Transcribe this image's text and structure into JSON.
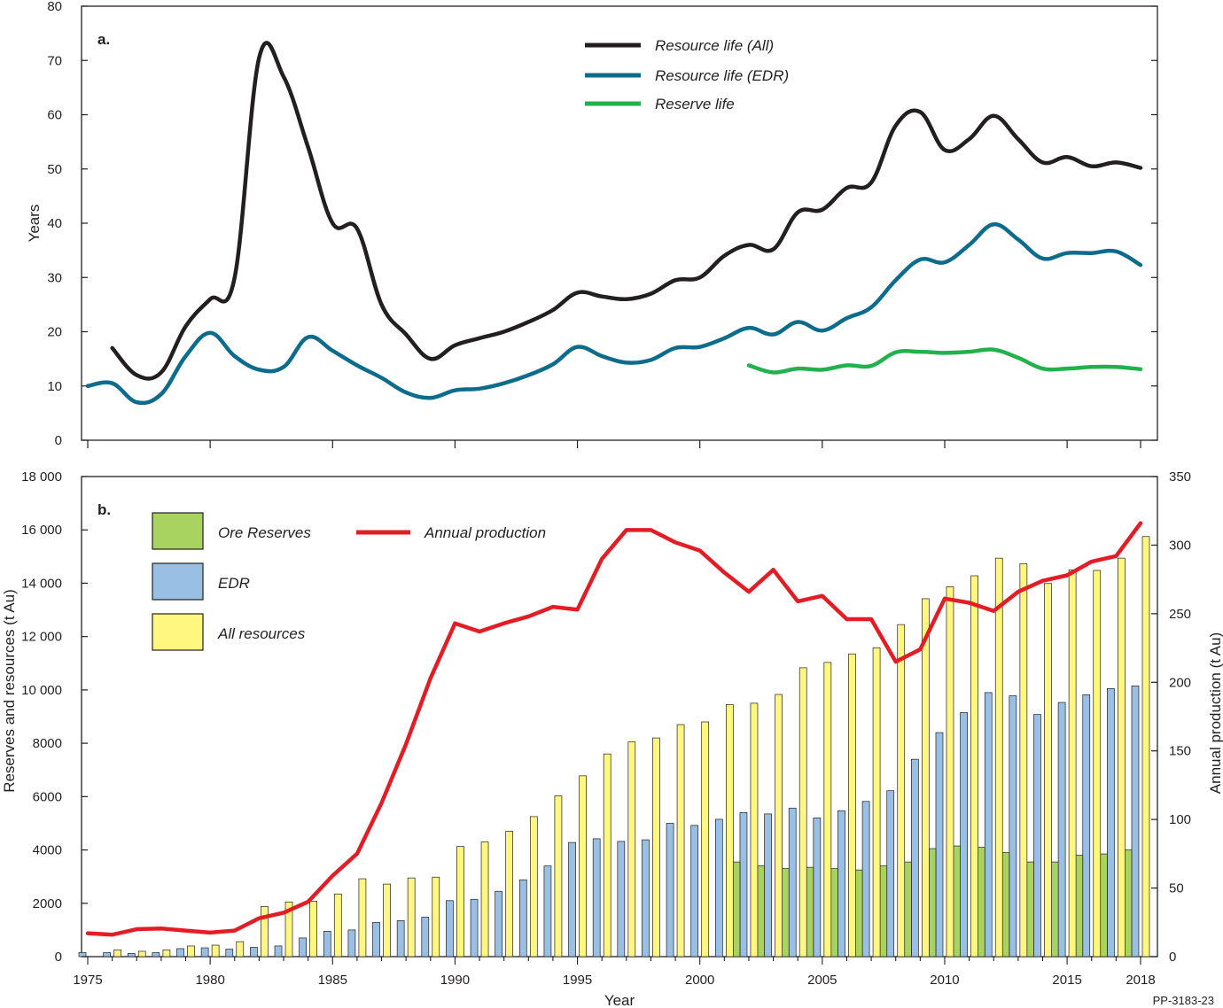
{
  "figure_ref": "PP-3183-23",
  "colors": {
    "axis": "#231f20",
    "resource_all": "#231f20",
    "resource_edr": "#0d6b8c",
    "reserve": "#22b14c",
    "ore_reserves": "#a8d361",
    "edr_bar": "#99bfe4",
    "all_resources_bar": "#fff780",
    "annual_production": "#e31d25"
  },
  "chart_data": [
    {
      "type": "line",
      "panel_label": "a.",
      "ylabel": "Years",
      "xlabel": "",
      "xlim": [
        1975,
        2018
      ],
      "ylim": [
        0,
        80
      ],
      "yticks": [
        0,
        10,
        20,
        30,
        40,
        50,
        60,
        70,
        80
      ],
      "ytick_labels": [
        "0",
        "10",
        "20",
        "30",
        "40",
        "50",
        "60",
        "70",
        "80"
      ],
      "legend_position": "top-center",
      "series": [
        {
          "name": "Resource life (All)",
          "color_key": "resource_all",
          "x": [
            1976,
            1977,
            1978,
            1979,
            1980,
            1981,
            1982,
            1983,
            1984,
            1985,
            1986,
            1987,
            1988,
            1989,
            1990,
            1991,
            1992,
            1993,
            1994,
            1995,
            1996,
            1997,
            1998,
            1999,
            2000,
            2001,
            2002,
            2003,
            2004,
            2005,
            2006,
            2007,
            2008,
            2009,
            2010,
            2011,
            2012,
            2013,
            2014,
            2015,
            2016,
            2017,
            2018
          ],
          "values": [
            17,
            12,
            12.5,
            21,
            26,
            30,
            70.5,
            67,
            54,
            40,
            39,
            25,
            19.5,
            15,
            17.5,
            18.8,
            20,
            21.8,
            24,
            27.2,
            26.5,
            26,
            27,
            29.5,
            30,
            34,
            36,
            35.2,
            42,
            42.5,
            46.5,
            47.5,
            58,
            60.5,
            53.5,
            55.5,
            59.8,
            55.5,
            51.2,
            52.2,
            50.5,
            51.2,
            50.2
          ]
        },
        {
          "name": "Resource life (EDR)",
          "color_key": "resource_edr",
          "x": [
            1975,
            1976,
            1977,
            1978,
            1979,
            1980,
            1981,
            1982,
            1983,
            1984,
            1985,
            1986,
            1987,
            1988,
            1989,
            1990,
            1991,
            1992,
            1993,
            1994,
            1995,
            1996,
            1997,
            1998,
            1999,
            2000,
            2001,
            2002,
            2003,
            2004,
            2005,
            2006,
            2007,
            2008,
            2009,
            2010,
            2011,
            2012,
            2013,
            2014,
            2015,
            2016,
            2017,
            2018
          ],
          "values": [
            10,
            10.5,
            7,
            8.5,
            15.5,
            19.8,
            15.5,
            13,
            13.5,
            19,
            16.5,
            13.8,
            11.5,
            8.8,
            7.8,
            9.2,
            9.5,
            10.5,
            12,
            14,
            17.2,
            15.5,
            14.3,
            14.8,
            17,
            17.2,
            18.8,
            20.7,
            19.5,
            21.8,
            20.2,
            22.5,
            24.5,
            29.5,
            33.3,
            32.8,
            36,
            39.8,
            37,
            33.5,
            34.5,
            34.5,
            34.8,
            32.3
          ]
        },
        {
          "name": "Reserve life",
          "color_key": "reserve",
          "x": [
            2002,
            2003,
            2004,
            2005,
            2006,
            2007,
            2008,
            2009,
            2010,
            2011,
            2012,
            2013,
            2014,
            2015,
            2016,
            2017,
            2018
          ],
          "values": [
            13.8,
            12.5,
            13.2,
            13,
            13.8,
            13.7,
            16.2,
            16.3,
            16.1,
            16.3,
            16.7,
            15.2,
            13.2,
            13.2,
            13.5,
            13.5,
            13.1
          ]
        }
      ]
    },
    {
      "type": "bar",
      "panel_label": "b.",
      "ylabel": "Reserves and resources (t Au)",
      "y2label": "Annual production (t Au)",
      "xlabel": "Year",
      "xlim": [
        1975,
        2018
      ],
      "xticks": [
        1975,
        1980,
        1985,
        1990,
        1995,
        2000,
        2005,
        2010,
        2015,
        2018
      ],
      "ylim": [
        0,
        18000
      ],
      "yticks": [
        0,
        2000,
        4000,
        6000,
        8000,
        10000,
        12000,
        14000,
        16000,
        18000
      ],
      "ytick_labels": [
        "0",
        "2000",
        "4000",
        "6000",
        "8000",
        "10 000",
        "12 000",
        "14 000",
        "16 000",
        "18 000"
      ],
      "y2lim": [
        0,
        350
      ],
      "y2ticks": [
        0,
        50,
        100,
        150,
        200,
        250,
        300,
        350
      ],
      "legend_position": "top-left",
      "years": [
        1975,
        1976,
        1977,
        1978,
        1979,
        1980,
        1981,
        1982,
        1983,
        1984,
        1985,
        1986,
        1987,
        1988,
        1989,
        1990,
        1991,
        1992,
        1993,
        1994,
        1995,
        1996,
        1997,
        1998,
        1999,
        2000,
        2001,
        2002,
        2003,
        2004,
        2005,
        2006,
        2007,
        2008,
        2009,
        2010,
        2011,
        2012,
        2013,
        2014,
        2015,
        2016,
        2017,
        2018
      ],
      "bar_series": [
        {
          "name": "Ore Reserves",
          "color_key": "ore_reserves",
          "x": [
            2002,
            2003,
            2004,
            2005,
            2006,
            2007,
            2008,
            2009,
            2010,
            2011,
            2012,
            2013,
            2014,
            2015,
            2016,
            2017,
            2018
          ],
          "values": [
            3550,
            3400,
            3300,
            3350,
            3300,
            3250,
            3400,
            3550,
            4050,
            4150,
            4100,
            3900,
            3550,
            3550,
            3800,
            3850,
            4000
          ]
        },
        {
          "name": "EDR",
          "color_key": "edr_bar",
          "x": [
            1975,
            1976,
            1977,
            1978,
            1979,
            1980,
            1981,
            1982,
            1983,
            1984,
            1985,
            1986,
            1987,
            1988,
            1989,
            1990,
            1991,
            1992,
            1993,
            1994,
            1995,
            1996,
            1997,
            1998,
            1999,
            2000,
            2001,
            2002,
            2003,
            2004,
            2005,
            2006,
            2007,
            2008,
            2009,
            2010,
            2011,
            2012,
            2013,
            2014,
            2015,
            2016,
            2017,
            2018
          ],
          "values": [
            150,
            150,
            120,
            150,
            300,
            330,
            280,
            350,
            400,
            700,
            950,
            1000,
            1280,
            1350,
            1480,
            2100,
            2150,
            2450,
            2880,
            3400,
            4280,
            4420,
            4320,
            4380,
            5000,
            4920,
            5150,
            5400,
            5350,
            5570,
            5200,
            5470,
            5820,
            6220,
            7400,
            8400,
            9150,
            9900,
            9780,
            9080,
            9530,
            9820,
            10050,
            10150
          ]
        },
        {
          "name": "All resources",
          "color_key": "all_resources_bar",
          "x": [
            1976,
            1977,
            1978,
            1979,
            1980,
            1981,
            1982,
            1983,
            1984,
            1985,
            1986,
            1987,
            1988,
            1989,
            1990,
            1991,
            1992,
            1993,
            1994,
            1995,
            1996,
            1997,
            1998,
            1999,
            2000,
            2001,
            2002,
            2003,
            2004,
            2005,
            2006,
            2007,
            2008,
            2009,
            2010,
            2011,
            2012,
            2013,
            2014,
            2015,
            2016,
            2017,
            2018
          ],
          "values": [
            250,
            200,
            250,
            400,
            430,
            560,
            1880,
            2050,
            2080,
            2350,
            2920,
            2720,
            2950,
            2980,
            4130,
            4300,
            4700,
            5250,
            6030,
            6780,
            7600,
            8050,
            8200,
            8700,
            8800,
            9450,
            9500,
            9830,
            10830,
            11030,
            11350,
            11580,
            12450,
            13420,
            13870,
            14280,
            14940,
            14730,
            13990,
            14500,
            14480,
            14940,
            15750
          ]
        }
      ],
      "line_series": [
        {
          "name": "Annual production",
          "axis": "right",
          "color_key": "annual_production",
          "x": [
            1975,
            1976,
            1977,
            1978,
            1979,
            1980,
            1981,
            1982,
            1983,
            1984,
            1985,
            1986,
            1987,
            1988,
            1989,
            1990,
            1991,
            1992,
            1993,
            1994,
            1995,
            1996,
            1997,
            1998,
            1999,
            2000,
            2001,
            2002,
            2003,
            2004,
            2005,
            2006,
            2007,
            2008,
            2009,
            2010,
            2011,
            2012,
            2013,
            2014,
            2015,
            2016,
            2017,
            2018
          ],
          "values": [
            17,
            16,
            20,
            20.5,
            19,
            17.5,
            19,
            28,
            32,
            40,
            59,
            75,
            112,
            155,
            203,
            243,
            237,
            243,
            248,
            255,
            253,
            290,
            311,
            311,
            302,
            296,
            280,
            266,
            282,
            259,
            263,
            246,
            246,
            215,
            224,
            261,
            258,
            252,
            266,
            274,
            278,
            288,
            292,
            316
          ]
        }
      ]
    }
  ]
}
